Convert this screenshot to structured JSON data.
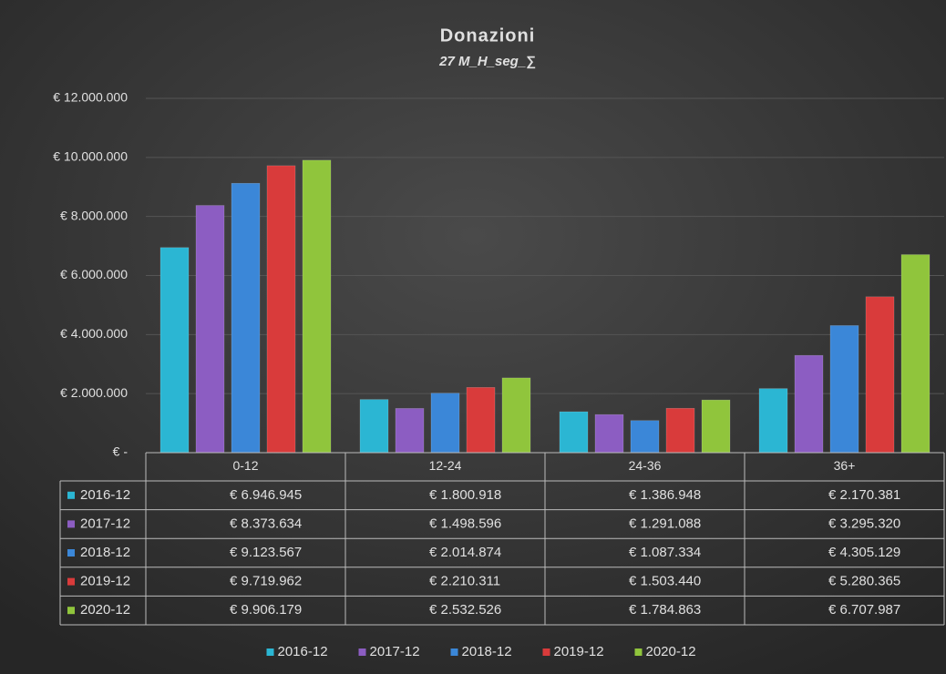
{
  "chart_data": {
    "type": "bar",
    "title": "Donazioni",
    "subtitle": "27 M_H_seg_∑",
    "categories": [
      "0-12",
      "12-24",
      "24-36",
      "36+"
    ],
    "series": [
      {
        "name": "2016-12",
        "color": "#2bb6d3",
        "values": [
          6946945,
          1800918,
          1386948,
          2170381
        ],
        "value_labels": [
          "€ 6.946.945",
          "€ 1.800.918",
          "€ 1.386.948",
          "€ 2.170.381"
        ]
      },
      {
        "name": "2017-12",
        "color": "#8c5dc2",
        "values": [
          8373634,
          1498596,
          1291088,
          3295320
        ],
        "value_labels": [
          "€ 8.373.634",
          "€ 1.498.596",
          "€ 1.291.088",
          "€ 3.295.320"
        ]
      },
      {
        "name": "2018-12",
        "color": "#3b87d8",
        "values": [
          9123567,
          2014874,
          1087334,
          4305129
        ],
        "value_labels": [
          "€ 9.123.567",
          "€ 2.014.874",
          "€ 1.087.334",
          "€ 4.305.129"
        ]
      },
      {
        "name": "2019-12",
        "color": "#d93b3b",
        "values": [
          9719962,
          2210311,
          1503440,
          5280365
        ],
        "value_labels": [
          "€ 9.719.962",
          "€ 2.210.311",
          "€ 1.503.440",
          "€ 5.280.365"
        ]
      },
      {
        "name": "2020-12",
        "color": "#90c53c",
        "values": [
          9906179,
          2532526,
          1784863,
          6707987
        ],
        "value_labels": [
          "€ 9.906.179",
          "€ 2.532.526",
          "€ 1.784.863",
          "€ 6.707.987"
        ]
      }
    ],
    "ylim": [
      0,
      12000000
    ],
    "yticks": [
      {
        "value": 0,
        "label": "€ -"
      },
      {
        "value": 2000000,
        "label": "€ 2.000.000"
      },
      {
        "value": 4000000,
        "label": "€ 4.000.000"
      },
      {
        "value": 6000000,
        "label": "€ 6.000.000"
      },
      {
        "value": 8000000,
        "label": "€ 8.000.000"
      },
      {
        "value": 10000000,
        "label": "€ 10.000.000"
      },
      {
        "value": 12000000,
        "label": "€ 12.000.000"
      }
    ],
    "grid": true,
    "legend": "bottom"
  }
}
